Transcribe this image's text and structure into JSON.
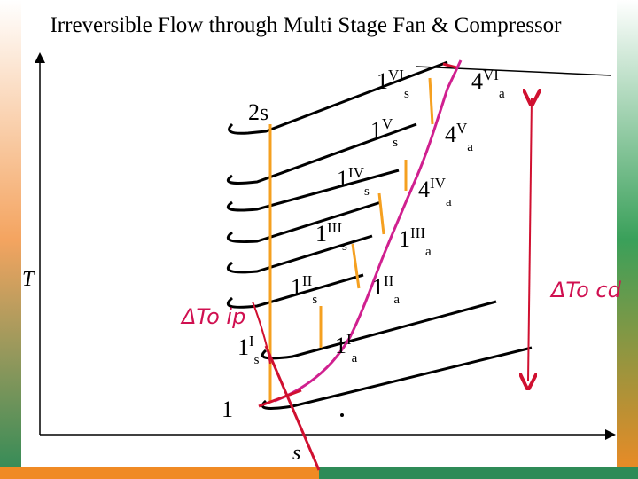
{
  "title": "Irreversible Flow through Multi Stage Fan & Compressor",
  "axes": {
    "y_label": "T",
    "x_label": "s"
  },
  "state_labels": [
    {
      "base": "1",
      "sup": "VI",
      "sub": "s"
    },
    {
      "base": "4",
      "sup": "VI",
      "sub": "a"
    },
    {
      "base": "2s"
    },
    {
      "base": "1",
      "sup": "V",
      "sub": "s"
    },
    {
      "base": "4",
      "sup": "V",
      "sub": "a"
    },
    {
      "base": "1",
      "sup": "IV",
      "sub": "s"
    },
    {
      "base": "4",
      "sup": "IV",
      "sub": "a"
    },
    {
      "base": "1",
      "sup": "III",
      "sub": "s"
    },
    {
      "base": "1",
      "sup": "III",
      "sub": "a"
    },
    {
      "base": "1",
      "sup": "II",
      "sub": "s"
    },
    {
      "base": "1",
      "sup": "II",
      "sub": "a"
    },
    {
      "base": "1",
      "sup": "I",
      "sub": "s"
    },
    {
      "base": "1",
      "sup": "I",
      "sub": "a"
    },
    {
      "base": "1"
    }
  ],
  "annotations": [
    "ΔTo ip",
    "ΔTo cd"
  ]
}
